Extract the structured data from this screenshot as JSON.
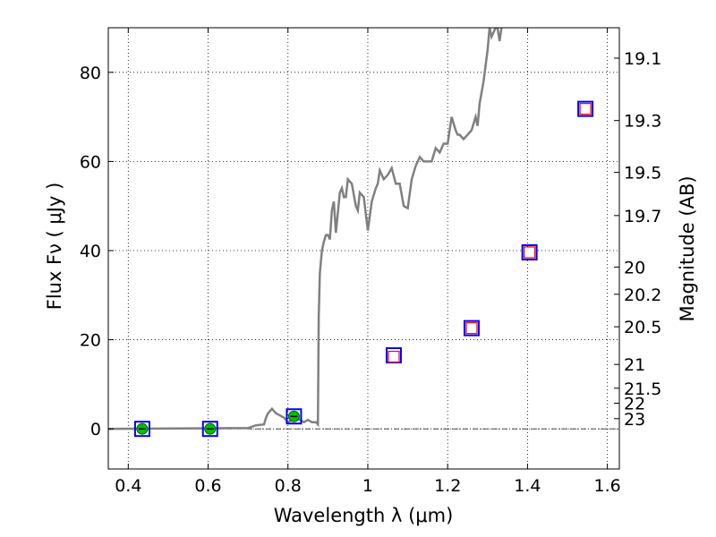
{
  "chart_data": {
    "type": "scatter",
    "xlabel": "Wavelength  λ (μm)",
    "ylabel": "Flux  Fν  ( μJy )",
    "ylabel_right": "Magnitude (AB)",
    "xlim": [
      0.35,
      1.63
    ],
    "ylim": [
      -9,
      90
    ],
    "grid": true,
    "x_ticks": [
      0.4,
      0.6,
      0.8,
      1.0,
      1.2,
      1.4,
      1.6
    ],
    "x_tick_labels": [
      "0.4",
      "0.6",
      "0.8",
      "1",
      "1.2",
      "1.4",
      "1.6"
    ],
    "y_ticks": [
      0,
      20,
      40,
      60,
      80
    ],
    "y_tick_labels": [
      "0",
      "20",
      "40",
      "60",
      "80"
    ],
    "mag_ticks": [
      "19.1",
      "19.3",
      "19.5",
      "19.7",
      "20",
      "20.2",
      "20.5",
      "21",
      "21.5",
      "22",
      "23"
    ],
    "model_spectrum": {
      "color": "#808080",
      "x": [
        0.35,
        0.7,
        0.72,
        0.74,
        0.745,
        0.75,
        0.76,
        0.77,
        0.78,
        0.79,
        0.8,
        0.81,
        0.82,
        0.83,
        0.84,
        0.85,
        0.86,
        0.87,
        0.875,
        0.877,
        0.88,
        0.885,
        0.89,
        0.895,
        0.9,
        0.905,
        0.91,
        0.915,
        0.92,
        0.93,
        0.935,
        0.94,
        0.945,
        0.95,
        0.96,
        0.97,
        0.975,
        0.98,
        0.99,
        1.0,
        1.01,
        1.02,
        1.025,
        1.03,
        1.04,
        1.05,
        1.06,
        1.07,
        1.08,
        1.09,
        1.1,
        1.11,
        1.12,
        1.13,
        1.14,
        1.15,
        1.16,
        1.17,
        1.18,
        1.19,
        1.2,
        1.21,
        1.22,
        1.225,
        1.23,
        1.24,
        1.25,
        1.26,
        1.27,
        1.275,
        1.28,
        1.29,
        1.3,
        1.305,
        1.31,
        1.32,
        1.325,
        1.33,
        1.335
      ],
      "y": [
        0,
        0.2,
        0.8,
        1.0,
        2.5,
        3.5,
        4.5,
        3.5,
        3.0,
        2.5,
        1.5,
        2.0,
        2.5,
        2.0,
        1.5,
        2.0,
        1.5,
        1.5,
        1.0,
        25,
        35,
        40,
        42,
        43.5,
        43.5,
        42.5,
        49,
        51,
        44,
        53,
        54,
        52,
        52,
        56,
        55,
        50,
        49,
        53,
        52,
        44.5,
        51,
        54,
        55,
        58,
        56,
        57,
        58.5,
        55,
        55,
        50,
        49.5,
        56,
        59,
        61,
        60,
        60,
        60,
        63,
        62,
        64,
        64,
        70,
        67,
        66,
        66,
        65,
        66,
        67,
        70,
        68,
        73,
        78,
        85,
        90,
        88,
        90,
        90,
        87,
        90
      ]
    },
    "series": [
      {
        "name": "",
        "marker": "filled-circle",
        "color": "#00bf00",
        "x": [
          0.435,
          0.605,
          0.815
        ],
        "values": [
          0.0,
          0.0,
          2.8
        ]
      },
      {
        "name": "",
        "marker": "open-square",
        "color": "#0000ff",
        "x": [
          0.435,
          0.605,
          0.815,
          1.065,
          1.26,
          1.405,
          1.545
        ],
        "values": [
          0.0,
          0.0,
          2.8,
          16.5,
          22.6,
          39.6,
          71.8
        ]
      },
      {
        "name": "",
        "marker": "small-open-square",
        "color": "#ff0000",
        "x": [
          1.065,
          1.26,
          1.405,
          1.545
        ],
        "values": [
          16.2,
          22.6,
          39.6,
          71.8
        ]
      }
    ]
  }
}
